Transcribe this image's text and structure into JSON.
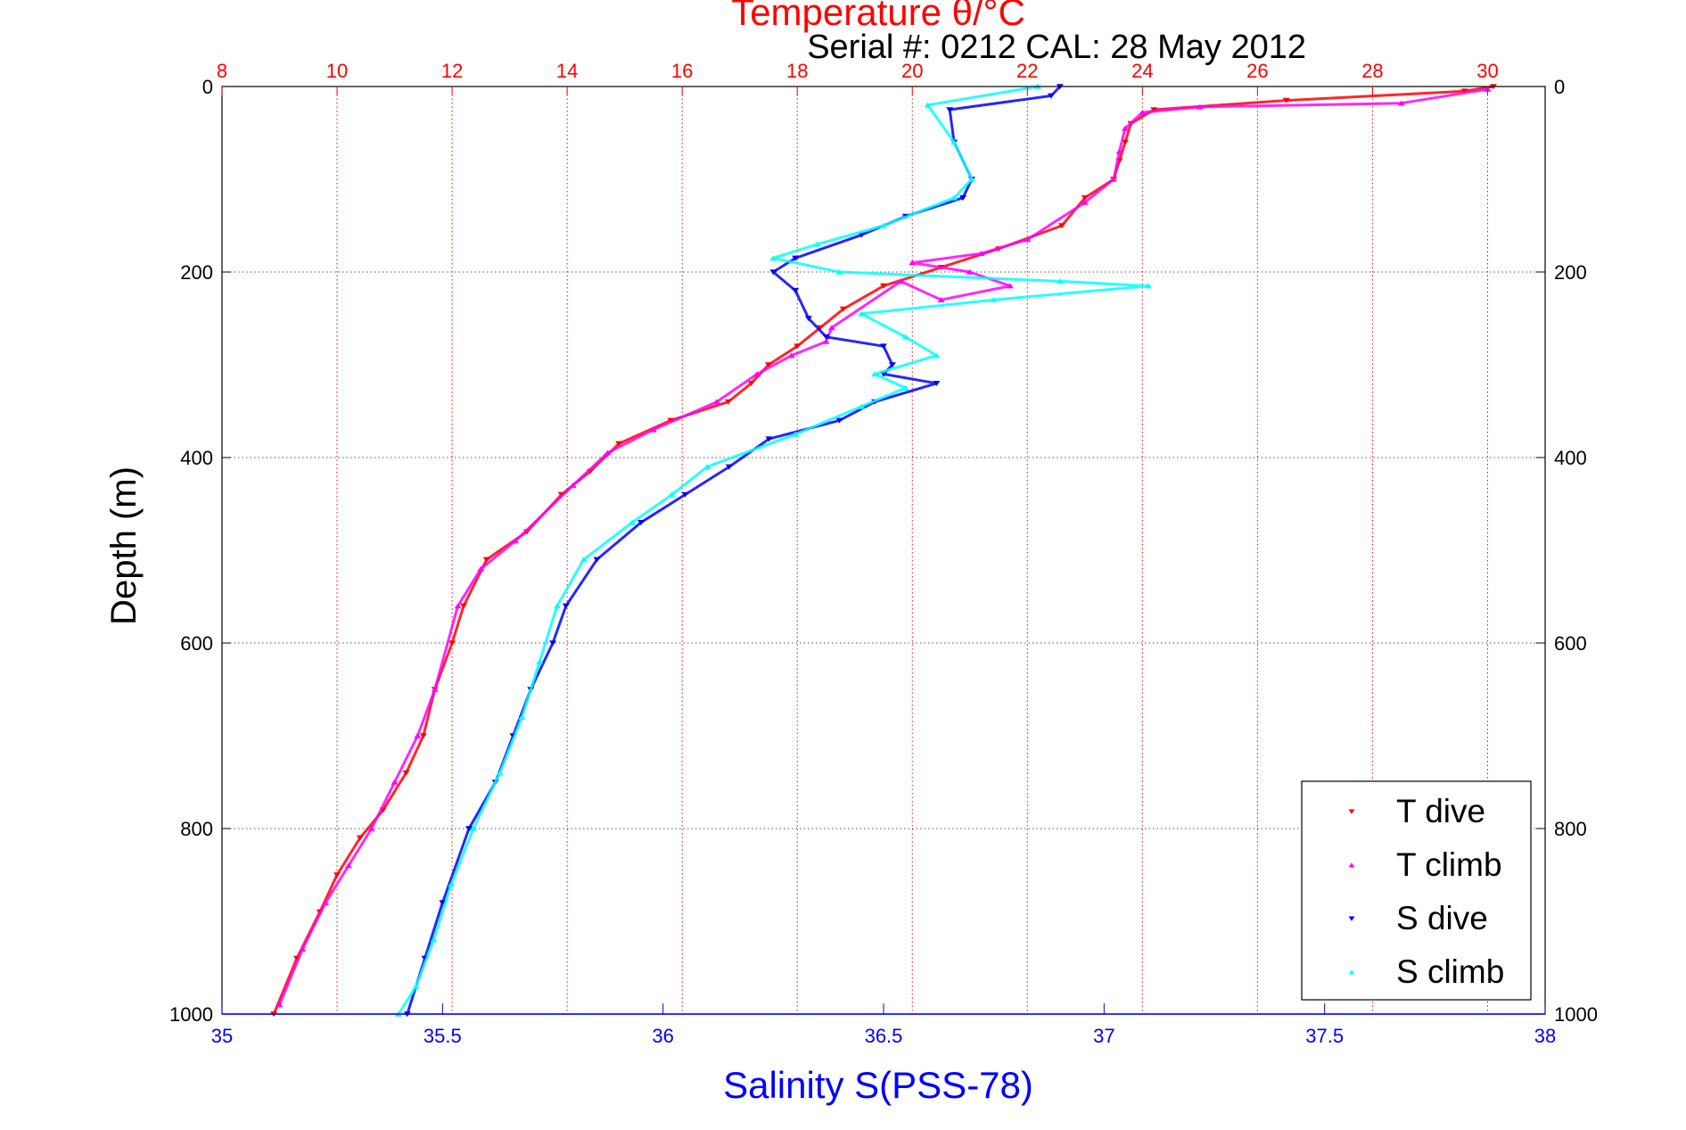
{
  "chart_data": {
    "type": "scatter",
    "title": "Temperature θ/°C",
    "subtitle": "Serial #: 0212  CAL: 28 May 2012",
    "xlabel": "Salinity S(PSS-78)",
    "ylabel": "Depth (m)",
    "colors": {
      "temperature_axis": "#ff0000",
      "salinity_axis": "#0000ff",
      "t_dive": "#ff0000",
      "t_climb": "#ff00ff",
      "s_dive": "#0000ff",
      "s_climb": "#00ffff"
    },
    "y_axis": {
      "range": [
        0,
        1000
      ],
      "reversed": true,
      "ticks": [
        "0",
        "200",
        "400",
        "600",
        "800",
        "1000"
      ],
      "grid": true
    },
    "x_axis_top": {
      "label": "Temperature θ/°C",
      "range": [
        8,
        31
      ],
      "ticks": [
        "8",
        "10",
        "12",
        "14",
        "16",
        "18",
        "20",
        "22",
        "24",
        "26",
        "28",
        "30"
      ],
      "grid": true
    },
    "x_axis_bottom": {
      "label": "Salinity S(PSS-78)",
      "range": [
        35,
        38
      ],
      "ticks": [
        "35",
        "35.5",
        "36",
        "36.5",
        "37",
        "37.5",
        "38"
      ]
    },
    "legend": {
      "position": "bottom-right",
      "entries": [
        "T dive",
        "T climb",
        "S dive",
        "S climb"
      ]
    },
    "series": [
      {
        "name": "T dive",
        "axis": "temperature",
        "marker": "down-triangle",
        "points": [
          [
            30.1,
            0
          ],
          [
            29.6,
            5
          ],
          [
            26.5,
            15
          ],
          [
            24.2,
            25
          ],
          [
            23.8,
            40
          ],
          [
            23.7,
            60
          ],
          [
            23.6,
            80
          ],
          [
            23.5,
            100
          ],
          [
            23.0,
            120
          ],
          [
            22.6,
            150
          ],
          [
            21.5,
            175
          ],
          [
            20.5,
            195
          ],
          [
            19.5,
            215
          ],
          [
            18.8,
            240
          ],
          [
            18.4,
            260
          ],
          [
            18.0,
            280
          ],
          [
            17.5,
            300
          ],
          [
            17.2,
            320
          ],
          [
            16.8,
            340
          ],
          [
            15.8,
            360
          ],
          [
            14.9,
            385
          ],
          [
            14.4,
            415
          ],
          [
            13.9,
            440
          ],
          [
            13.3,
            480
          ],
          [
            12.6,
            510
          ],
          [
            12.2,
            560
          ],
          [
            12.0,
            600
          ],
          [
            11.7,
            650
          ],
          [
            11.5,
            700
          ],
          [
            11.2,
            740
          ],
          [
            10.8,
            780
          ],
          [
            10.4,
            810
          ],
          [
            10.0,
            850
          ],
          [
            9.7,
            890
          ],
          [
            9.3,
            940
          ],
          [
            8.9,
            1000
          ]
        ]
      },
      {
        "name": "T climb",
        "axis": "temperature",
        "marker": "up-triangle",
        "points": [
          [
            30.0,
            3
          ],
          [
            28.5,
            18
          ],
          [
            25.0,
            22
          ],
          [
            24.0,
            28
          ],
          [
            23.7,
            45
          ],
          [
            23.6,
            70
          ],
          [
            23.5,
            100
          ],
          [
            23.0,
            125
          ],
          [
            22.0,
            165
          ],
          [
            21.2,
            180
          ],
          [
            20.0,
            190
          ],
          [
            21.0,
            200
          ],
          [
            21.7,
            215
          ],
          [
            20.5,
            230
          ],
          [
            19.8,
            210
          ],
          [
            18.6,
            260
          ],
          [
            18.5,
            275
          ],
          [
            17.9,
            290
          ],
          [
            17.3,
            310
          ],
          [
            16.6,
            340
          ],
          [
            15.5,
            370
          ],
          [
            14.7,
            395
          ],
          [
            14.1,
            430
          ],
          [
            13.1,
            490
          ],
          [
            12.5,
            520
          ],
          [
            12.1,
            560
          ],
          [
            11.7,
            650
          ],
          [
            11.4,
            700
          ],
          [
            11.0,
            750
          ],
          [
            10.6,
            800
          ],
          [
            10.2,
            840
          ],
          [
            9.8,
            880
          ],
          [
            9.4,
            930
          ],
          [
            9.0,
            990
          ]
        ]
      },
      {
        "name": "S dive",
        "axis": "salinity",
        "marker": "down-triangle",
        "points": [
          [
            36.9,
            0
          ],
          [
            36.88,
            10
          ],
          [
            36.65,
            25
          ],
          [
            36.66,
            60
          ],
          [
            36.7,
            100
          ],
          [
            36.68,
            120
          ],
          [
            36.55,
            140
          ],
          [
            36.45,
            160
          ],
          [
            36.3,
            185
          ],
          [
            36.25,
            200
          ],
          [
            36.3,
            220
          ],
          [
            36.33,
            250
          ],
          [
            36.37,
            270
          ],
          [
            36.5,
            280
          ],
          [
            36.52,
            300
          ],
          [
            36.5,
            310
          ],
          [
            36.62,
            320
          ],
          [
            36.48,
            340
          ],
          [
            36.4,
            360
          ],
          [
            36.24,
            380
          ],
          [
            36.15,
            410
          ],
          [
            36.05,
            440
          ],
          [
            35.95,
            470
          ],
          [
            35.85,
            510
          ],
          [
            35.78,
            560
          ],
          [
            35.75,
            600
          ],
          [
            35.7,
            650
          ],
          [
            35.66,
            700
          ],
          [
            35.62,
            750
          ],
          [
            35.56,
            800
          ],
          [
            35.5,
            880
          ],
          [
            35.46,
            940
          ],
          [
            35.42,
            1000
          ]
        ]
      },
      {
        "name": "S climb",
        "axis": "salinity",
        "marker": "up-triangle",
        "points": [
          [
            36.85,
            0
          ],
          [
            36.6,
            20
          ],
          [
            36.66,
            60
          ],
          [
            36.7,
            100
          ],
          [
            36.66,
            120
          ],
          [
            36.5,
            150
          ],
          [
            36.35,
            170
          ],
          [
            36.25,
            185
          ],
          [
            36.4,
            200
          ],
          [
            36.9,
            210
          ],
          [
            37.1,
            215
          ],
          [
            36.75,
            230
          ],
          [
            36.45,
            245
          ],
          [
            36.55,
            270
          ],
          [
            36.62,
            290
          ],
          [
            36.48,
            310
          ],
          [
            36.55,
            325
          ],
          [
            36.45,
            345
          ],
          [
            36.3,
            375
          ],
          [
            36.1,
            410
          ],
          [
            36.02,
            440
          ],
          [
            35.93,
            470
          ],
          [
            35.82,
            510
          ],
          [
            35.76,
            560
          ],
          [
            35.72,
            620
          ],
          [
            35.68,
            680
          ],
          [
            35.63,
            740
          ],
          [
            35.57,
            800
          ],
          [
            35.52,
            860
          ],
          [
            35.48,
            920
          ],
          [
            35.44,
            970
          ],
          [
            35.4,
            1000
          ]
        ]
      }
    ]
  }
}
